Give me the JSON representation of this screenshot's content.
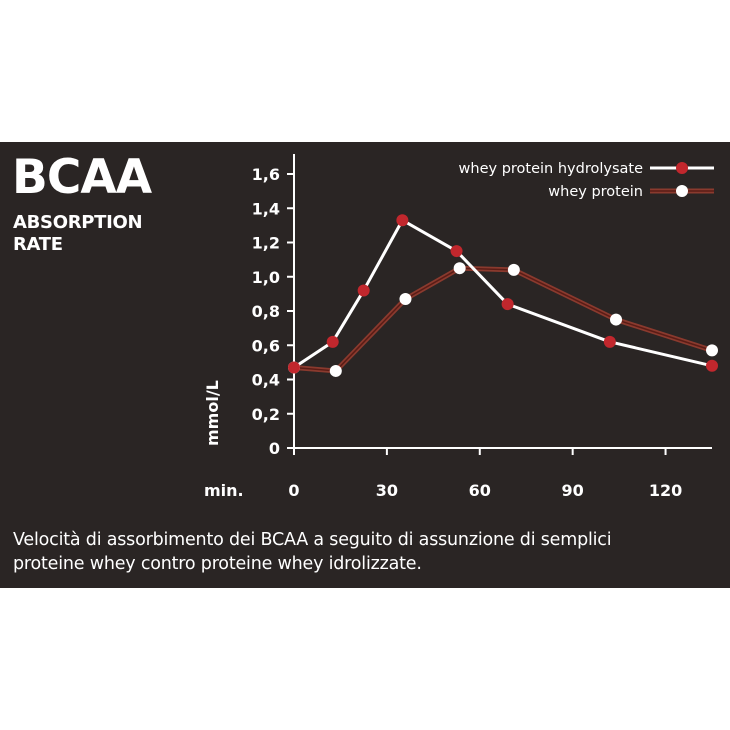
{
  "header": {
    "title": "BCAA",
    "subtitle_line1": "ABSORPTION",
    "subtitle_line2": "RATE"
  },
  "caption": {
    "line1": "Velocità di assorbimento dei BCAA a seguito di assunzione di semplici",
    "line2": "proteine whey contro proteine whey idrolizzate."
  },
  "colors": {
    "background": "#2a2524",
    "text": "#ffffff",
    "hydrolysate_line": "#ffffff",
    "hydrolysate_marker": "#c1272d",
    "whey_line": "#8a3a2e",
    "whey_marker": "#ffffff"
  },
  "chart_data": {
    "type": "line",
    "title": "",
    "xlabel": "min.",
    "ylabel": "mmol/L",
    "xlim": [
      0,
      135
    ],
    "ylim": [
      0,
      1.6
    ],
    "x_ticks": [
      0,
      30,
      60,
      90,
      120
    ],
    "x_tick_labels": [
      "0",
      "30",
      "60",
      "90",
      "120"
    ],
    "y_ticks": [
      0,
      0.2,
      0.4,
      0.6,
      0.8,
      1.0,
      1.2,
      1.4,
      1.6
    ],
    "y_tick_labels": [
      "0",
      "0,2",
      "0,4",
      "0,6",
      "0,8",
      "1,0",
      "1,2",
      "1,4",
      "1,6"
    ],
    "grid": false,
    "legend_position": "top-right",
    "series": [
      {
        "name": "whey protein hydrolysate",
        "line_style": "solid-white",
        "marker": "red-dot",
        "x": [
          0,
          12.5,
          22.5,
          35,
          52.5,
          69,
          102,
          135
        ],
        "y": [
          0.47,
          0.62,
          0.92,
          1.33,
          1.15,
          0.84,
          0.62,
          0.48
        ]
      },
      {
        "name": "whey protein",
        "line_style": "brown-double",
        "marker": "white-dot",
        "x": [
          0,
          13.5,
          36,
          53.5,
          71,
          104,
          135
        ],
        "y": [
          0.47,
          0.45,
          0.87,
          1.05,
          1.04,
          0.75,
          0.57
        ]
      }
    ]
  }
}
